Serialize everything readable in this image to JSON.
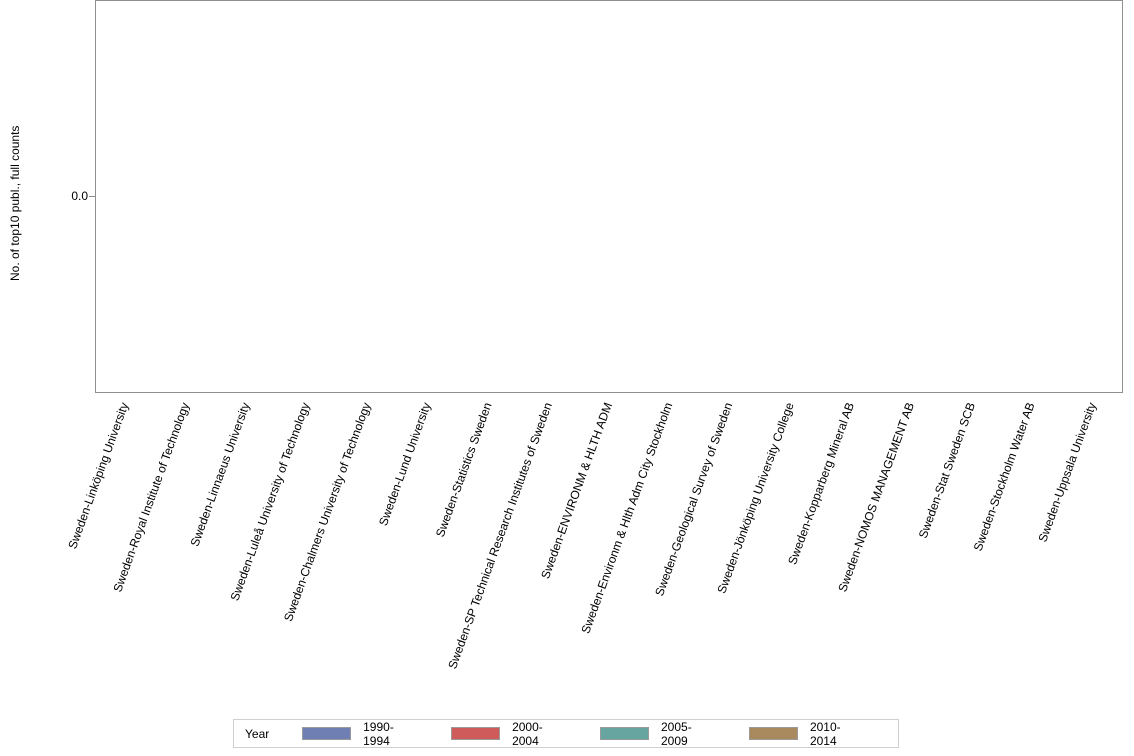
{
  "chart_data": {
    "type": "bar",
    "title": "",
    "xlabel": "",
    "ylabel": "No. of top10 publ., full counts",
    "y_ticks": [
      "0.0"
    ],
    "ylim": [
      -1,
      1
    ],
    "grid": false,
    "legend_position": "bottom",
    "legend_title": "Year",
    "categories": [
      "Sweden-Linköping University",
      "Sweden-Royal Institute of Technology",
      "Sweden-Linnaeus University",
      "Sweden-Luleå University of Technology",
      "Sweden-Chalmers University of Technology",
      "Sweden-Lund University",
      "Sweden-Statistics Sweden",
      "Sweden-SP Technical Research Institutes of Sweden",
      "Sweden-ENVIRONM & HLTH ADM",
      "Sweden-Environm & Hlth Adm City Stockholm",
      "Sweden-Geological Survey of Sweden",
      "Sweden-Jönköping University College",
      "Sweden-Kopparberg Mineral AB",
      "Sweden-NOMOS MANAGEMENT AB",
      "Sweden-Stat Sweden SCB",
      "Sweden-Stockholm Water AB",
      "Sweden-Uppsala University"
    ],
    "series": [
      {
        "name": "1990-1994",
        "color": "#6f7eb3",
        "values": [
          0,
          0,
          0,
          0,
          0,
          0,
          0,
          0,
          0,
          0,
          0,
          0,
          0,
          0,
          0,
          0,
          0
        ]
      },
      {
        "name": "2000-2004",
        "color": "#d05b5b",
        "values": [
          0,
          0,
          0,
          0,
          0,
          0,
          0,
          0,
          0,
          0,
          0,
          0,
          0,
          0,
          0,
          0,
          0
        ]
      },
      {
        "name": "2005-2009",
        "color": "#66a5a0",
        "values": [
          0,
          0,
          0,
          0,
          0,
          0,
          0,
          0,
          0,
          0,
          0,
          0,
          0,
          0,
          0,
          0,
          0
        ]
      },
      {
        "name": "2010-2014",
        "color": "#a98a5e",
        "values": [
          0,
          0,
          0,
          0,
          0,
          0,
          0,
          0,
          0,
          0,
          0,
          0,
          0,
          0,
          0,
          0,
          0
        ]
      }
    ]
  }
}
